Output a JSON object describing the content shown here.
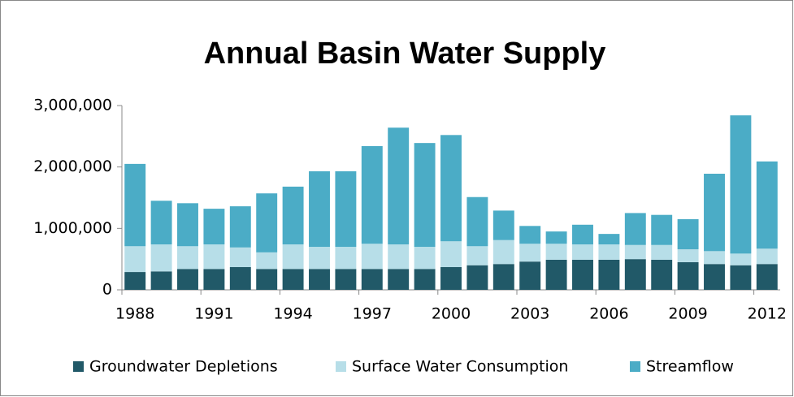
{
  "chart_data": {
    "type": "stacked_bar",
    "title": "Annual Basin Water Supply",
    "categories": [
      "1988",
      null,
      null,
      "1991",
      null,
      null,
      "1994",
      null,
      null,
      "1997",
      null,
      null,
      "2000",
      null,
      null,
      "2003",
      null,
      null,
      "2006",
      null,
      null,
      "2009",
      null,
      null,
      "2012"
    ],
    "series": [
      {
        "name": "Groundwater Depletions",
        "color": "#215968",
        "values": [
          290000,
          300000,
          340000,
          340000,
          370000,
          340000,
          340000,
          340000,
          340000,
          340000,
          340000,
          340000,
          370000,
          400000,
          420000,
          460000,
          490000,
          490000,
          490000,
          500000,
          490000,
          450000,
          420000,
          400000,
          420000
        ]
      },
      {
        "name": "Surface Water Consumption",
        "color": "#b7dee8",
        "values": [
          420000,
          440000,
          370000,
          400000,
          320000,
          270000,
          400000,
          360000,
          360000,
          410000,
          400000,
          360000,
          420000,
          310000,
          390000,
          290000,
          260000,
          250000,
          250000,
          230000,
          240000,
          210000,
          210000,
          190000,
          250000
        ]
      },
      {
        "name": "Streamflow",
        "color": "#4bacc6",
        "values": [
          1340000,
          710000,
          700000,
          580000,
          670000,
          960000,
          940000,
          1230000,
          1230000,
          1590000,
          1900000,
          1690000,
          1730000,
          800000,
          480000,
          290000,
          200000,
          320000,
          170000,
          520000,
          490000,
          490000,
          1260000,
          2250000,
          1420000
        ]
      }
    ],
    "ylim": [
      0,
      3000000
    ],
    "yticks": [
      0,
      {
        "value": 1000000,
        "label": "1,000,000"
      },
      {
        "value": 2000000,
        "label": "2,000,000"
      },
      {
        "value": 3000000,
        "label": "3,000,000"
      }
    ],
    "grid": false,
    "legend": "bottom"
  }
}
